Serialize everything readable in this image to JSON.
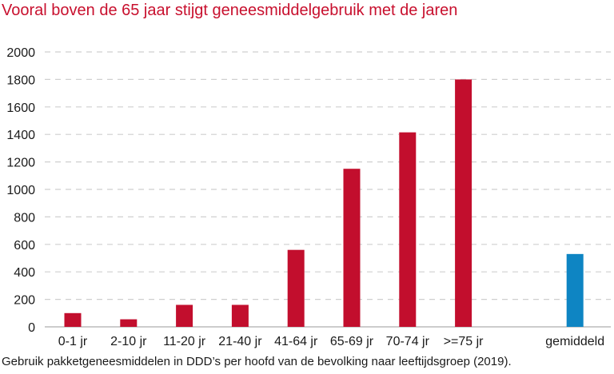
{
  "title": "Vooral boven de 65 jaar stijgt geneesmiddelgebruik met de jaren",
  "caption": "Gebruik pakketgeneesmiddelen in DDD’s per hoofd van de bevolking naar leeftijdsgroep (2019).",
  "colors": {
    "title": "#c8102e",
    "bar": "#c20e2d",
    "highlight": "#0e85c3",
    "grid": "#cfcfcf"
  },
  "chart_data": {
    "type": "bar",
    "title": "Vooral boven de 65 jaar stijgt geneesmiddelgebruik met de jaren",
    "categories": [
      "0-1 jr",
      "2-10 jr",
      "11-20 jr",
      "21-40 jr",
      "41-64 jr",
      "65-69 jr",
      "70-74 jr",
      ">=75 jr",
      "",
      "gemiddeld"
    ],
    "values": [
      100,
      55,
      160,
      160,
      560,
      1150,
      1415,
      1800,
      null,
      530
    ],
    "highlight_category": "gemiddeld",
    "yticks": [
      "0",
      "200",
      "400",
      "600",
      "800",
      "1000",
      "1200",
      "1400",
      "1600",
      "1800",
      "2000"
    ],
    "ylim": [
      0,
      2000
    ],
    "xlabel": "",
    "ylabel": "",
    "grid": "horizontal dashed",
    "legend": "none"
  }
}
